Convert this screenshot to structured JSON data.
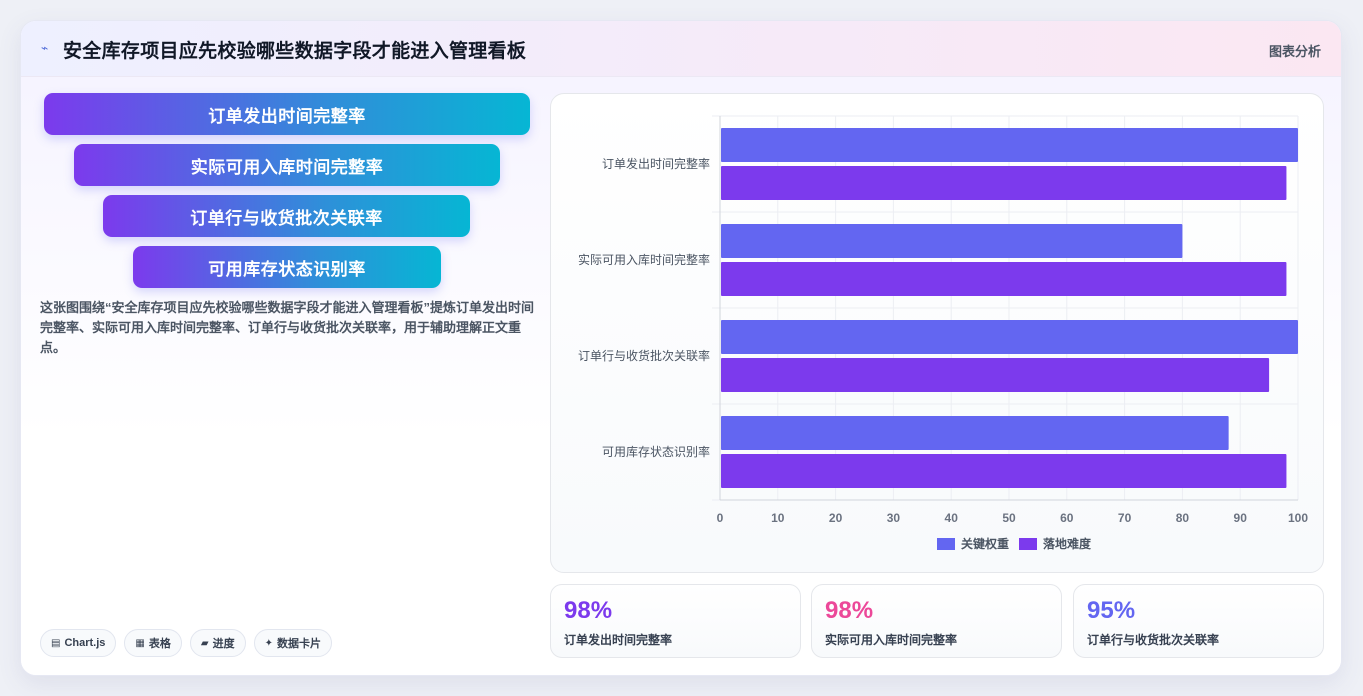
{
  "header": {
    "icon": "sparkline-icon",
    "title": "安全库存项目应先校验哪些数据字段才能进入管理看板",
    "tag": "图表分析"
  },
  "funnel": [
    {
      "label": "订单发出时间完整率"
    },
    {
      "label": "实际可用入库时间完整率"
    },
    {
      "label": "订单行与收货批次关联率"
    },
    {
      "label": "可用库存状态识别率"
    }
  ],
  "description": "这张图围绕“安全库存项目应先校验哪些数据字段才能进入管理看板”提炼订单发出时间完整率、实际可用入库时间完整率、订单行与收货批次关联率，用于辅助理解正文重点。",
  "chips": [
    {
      "icon": "chart-icon",
      "glyph": "▤",
      "label": "Chart.js"
    },
    {
      "icon": "table-icon",
      "glyph": "▦",
      "label": "表格"
    },
    {
      "icon": "progress-icon",
      "glyph": "▰",
      "label": "进度"
    },
    {
      "icon": "sparkle-icon",
      "glyph": "✦",
      "label": "数据卡片"
    }
  ],
  "chart_data": {
    "type": "bar",
    "orientation": "horizontal",
    "categories": [
      "订单发出时间完整率",
      "实际可用入库时间完整率",
      "订单行与收货批次关联率",
      "可用库存状态识别率"
    ],
    "series": [
      {
        "name": "关键权重",
        "values": [
          100,
          80,
          100,
          88
        ],
        "color": "#6366f1"
      },
      {
        "name": "落地难度",
        "values": [
          98,
          98,
          95,
          98
        ],
        "color": "#7c3aed"
      }
    ],
    "xlim": [
      0,
      100
    ],
    "xticks": [
      "0",
      "10",
      "20",
      "30",
      "40",
      "50",
      "60",
      "70",
      "80",
      "90",
      "100"
    ],
    "grid": true,
    "legend": "bottom"
  },
  "stats": [
    {
      "value": "98%",
      "label": "订单发出时间完整率",
      "color": "#7c3aed"
    },
    {
      "value": "98%",
      "label": "实际可用入库时间完整率",
      "color": "#ec4899"
    },
    {
      "value": "95%",
      "label": "订单行与收货批次关联率",
      "color": "#6366f1"
    }
  ]
}
